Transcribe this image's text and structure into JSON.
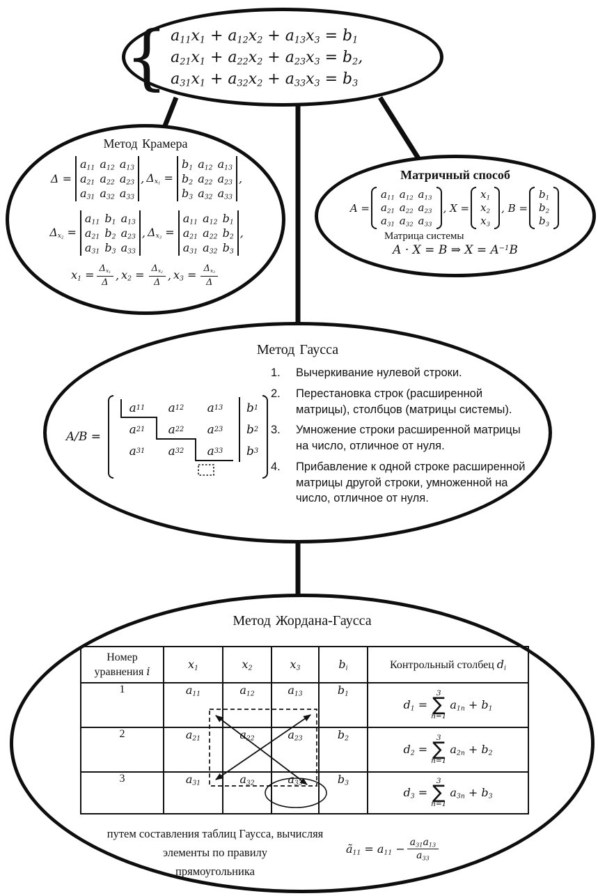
{
  "colors": {
    "ink": "#111111",
    "background": "#ffffff"
  },
  "system": {
    "brace": "{",
    "line1": "a_{11}x_{1} + a_{12}x_{2} + a_{13}x_{3} = b_{1}",
    "line2": "a_{21}x_{1} + a_{22}x_{2} + a_{23}x_{3} = b_{2},",
    "line3": "a_{31}x_{1} + a_{32}x_{2} + a_{33}x_{3} = b_{3}"
  },
  "cramer": {
    "title": "Метод Крамера",
    "d_lhs": "Δ =",
    "d_rows": [
      "a_{11} a_{12} a_{13}",
      "a_{21} a_{22} a_{23}",
      "a_{31} a_{32} a_{33}"
    ],
    "comma1": ",",
    "dx1_lhs": "Δ_{x_{1}} =",
    "dx1_rows": [
      "b_{1} a_{12} a_{13}",
      "b_{2} a_{22} a_{23}",
      "b_{3} a_{32} a_{33}"
    ],
    "comma2": ",",
    "dx2_lhs": "Δ_{x_{2}} =",
    "dx2_rows": [
      "a_{11} b_{1} a_{13}",
      "a_{21} b_{2} a_{23}",
      "a_{31} b_{3} a_{33}"
    ],
    "comma3": ",",
    "dx3_lhs": "Δ_{x_{3}} =",
    "dx3_rows": [
      "a_{11} a_{12} b_{1}",
      "a_{21} a_{22} b_{2}",
      "a_{31} a_{32} b_{3}"
    ],
    "comma4": ",",
    "sol": [
      {
        "lhs": "x_{1} =",
        "num": "Δ_{x_{1}}",
        "den": "Δ",
        "tail": ","
      },
      {
        "lhs": "x_{2} =",
        "num": "Δ_{x_{2}}",
        "den": "Δ",
        "tail": ","
      },
      {
        "lhs": "x_{3} =",
        "num": "Δ_{x_{3}}",
        "den": "Δ",
        "tail": ""
      }
    ]
  },
  "matrix_method": {
    "title": "Матричный способ",
    "a_lhs": "A =",
    "a_rows": [
      "a_{11} a_{12} a_{13}",
      "a_{21} a_{22} a_{23}",
      "a_{31} a_{32} a_{33}"
    ],
    "x_lhs": ", X =",
    "x_rows": [
      "x_{1}",
      "x_{2}",
      "x_{3}"
    ],
    "b_lhs": ", B =",
    "b_rows": [
      "b_{1}",
      "b_{2}",
      "b_{3}"
    ],
    "caption": "Матрица системы",
    "equation": "A · X = B ⇒ X = A^{−1}B"
  },
  "gauss": {
    "title": "Метод Гаусса",
    "lhs": "A/B =",
    "m": [
      [
        "a_{11}",
        "a_{12}",
        "a_{13}"
      ],
      [
        "a_{21}",
        "a_{22}",
        "a_{23}"
      ],
      [
        "a_{31}",
        "a_{32}",
        "a_{33}"
      ]
    ],
    "b_col": [
      "b_{1}",
      "b_{2}",
      "b_{3}"
    ],
    "rules": [
      {
        "n": "1.",
        "text": "Вычеркивание нулевой строки."
      },
      {
        "n": "2.",
        "text": "Перестановка строк (расширенной матрицы), столбцов (матрицы системы)."
      },
      {
        "n": "3.",
        "text": "Умножение строки расширенной матрицы на число, отличное от нуля."
      },
      {
        "n": "4.",
        "text": "Прибавление к одной строке расширенной матрицы другой строки, умноженной на число, отличное от нуля."
      }
    ]
  },
  "jordan": {
    "title": "Метод Жордана-Гаусса",
    "sigma": "∑",
    "header": {
      "col1a": "Номер",
      "col1b": "уравнения",
      "col1i": "i",
      "x1": "x_{1}",
      "x2": "x_{2}",
      "x3": "x_{3}",
      "bi": "b_{i}",
      "ctrl": "Контрольный столбец",
      "di": "d_{i}"
    },
    "rows": [
      {
        "n": "1",
        "a1": "a_{11}",
        "a2": "a_{12}",
        "a3": "a_{13}",
        "b": "b_{1}",
        "dl": "d_{1} =",
        "st": "3",
        "sb": "n=1",
        "dr": "a_{1n} + b_{1}"
      },
      {
        "n": "2",
        "a1": "a_{21}",
        "a2": "a_{22}",
        "a3": "a_{23}",
        "b": "b_{2}",
        "dl": "d_{2} =",
        "st": "3",
        "sb": "n=1",
        "dr": "a_{2n} + b_{2}"
      },
      {
        "n": "3",
        "a1": "a_{31}",
        "a2": "a_{32}",
        "a3": "a_{33}",
        "b": "b_{3}",
        "dl": "d_{3} =",
        "st": "3",
        "sb": "n=1",
        "dr": "a_{3n} + b_{3}"
      }
    ],
    "note1": "путем составления таблиц Гаусса, вычисляя",
    "note2": "элементы по правилу",
    "note3": "прямоугольника",
    "formula": {
      "lhs": "ã_{11} = a_{11} −",
      "num": "a_{31}a_{13}",
      "den": "a_{33}"
    }
  }
}
